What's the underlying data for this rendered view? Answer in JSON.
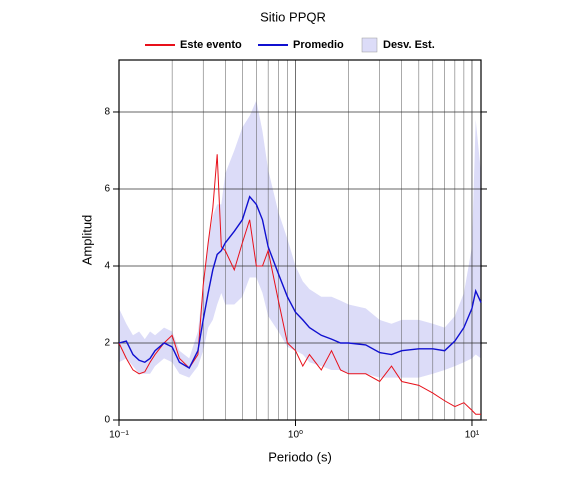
{
  "chart_data": {
    "type": "line",
    "title": "Sitio PPQR",
    "x_label": "Periodo (s)",
    "y_label": "Amplitud",
    "log_x": true,
    "grid": true,
    "xlim": [
      0.1,
      11.25
    ],
    "ylim": [
      0,
      9.35
    ],
    "xticks": [
      {
        "value": 0.1,
        "label": "10⁻¹"
      },
      {
        "value": 1,
        "label": "10⁰"
      },
      {
        "value": 10,
        "label": "10¹"
      }
    ],
    "yticks": [
      0,
      2,
      4,
      6,
      8
    ],
    "x": [
      0.1,
      0.11,
      0.12,
      0.13,
      0.14,
      0.15,
      0.16,
      0.18,
      0.2,
      0.22,
      0.25,
      0.28,
      0.3,
      0.32,
      0.34,
      0.36,
      0.38,
      0.4,
      0.45,
      0.5,
      0.55,
      0.6,
      0.65,
      0.7,
      0.8,
      0.9,
      1.0,
      1.1,
      1.2,
      1.4,
      1.6,
      1.8,
      2.0,
      2.5,
      3.0,
      3.5,
      4,
      5,
      6,
      7,
      8,
      9,
      10,
      10.5,
      11.25
    ],
    "series": [
      {
        "name": "Este evento",
        "color": "#e8101a",
        "values": [
          2.0,
          1.6,
          1.3,
          1.2,
          1.25,
          1.5,
          1.7,
          2.0,
          2.2,
          1.6,
          1.35,
          1.7,
          3.5,
          4.6,
          5.5,
          6.9,
          4.5,
          4.4,
          3.9,
          4.6,
          5.2,
          4.0,
          4.0,
          4.4,
          3.1,
          2.0,
          1.8,
          1.4,
          1.7,
          1.3,
          1.8,
          1.3,
          1.2,
          1.2,
          1.0,
          1.4,
          1.0,
          0.9,
          0.7,
          0.5,
          0.35,
          0.45,
          0.25,
          0.15,
          0.15
        ]
      },
      {
        "name": "Promedio",
        "color": "#1010d0",
        "values": [
          2.0,
          2.05,
          1.7,
          1.55,
          1.5,
          1.6,
          1.8,
          2.0,
          1.9,
          1.5,
          1.35,
          1.8,
          2.6,
          3.3,
          3.9,
          4.3,
          4.4,
          4.6,
          4.9,
          5.2,
          5.8,
          5.6,
          5.2,
          4.5,
          3.8,
          3.2,
          2.8,
          2.6,
          2.4,
          2.2,
          2.1,
          2.0,
          2.0,
          1.95,
          1.75,
          1.7,
          1.8,
          1.85,
          1.85,
          1.8,
          2.05,
          2.4,
          2.9,
          3.35,
          3.05
        ]
      },
      {
        "name": "Desv. Est.",
        "color": "#dcdcf8",
        "lower": [
          1.5,
          1.6,
          1.4,
          1.2,
          1.2,
          1.2,
          1.4,
          1.6,
          1.5,
          1.2,
          1.1,
          1.4,
          1.8,
          2.4,
          2.6,
          3.0,
          3.3,
          3.0,
          3.0,
          3.2,
          3.7,
          3.7,
          3.3,
          2.7,
          2.3,
          1.9,
          1.8,
          1.7,
          1.5,
          1.4,
          1.3,
          1.3,
          1.2,
          1.2,
          1.1,
          1.1,
          1.1,
          1.1,
          1.2,
          1.3,
          1.4,
          1.5,
          1.6,
          1.7,
          1.6
        ],
        "upper": [
          2.9,
          2.5,
          2.2,
          2.3,
          2.1,
          2.3,
          2.2,
          2.4,
          2.3,
          1.8,
          1.6,
          2.3,
          3.5,
          4.6,
          5.3,
          5.6,
          5.6,
          6.4,
          7.0,
          7.6,
          7.9,
          8.3,
          7.5,
          6.5,
          5.4,
          4.7,
          4.0,
          3.6,
          3.4,
          3.2,
          3.2,
          3.1,
          3.0,
          2.9,
          2.6,
          2.5,
          2.6,
          2.6,
          2.5,
          2.4,
          2.7,
          3.3,
          4.5,
          7.8,
          6.4
        ]
      }
    ]
  }
}
